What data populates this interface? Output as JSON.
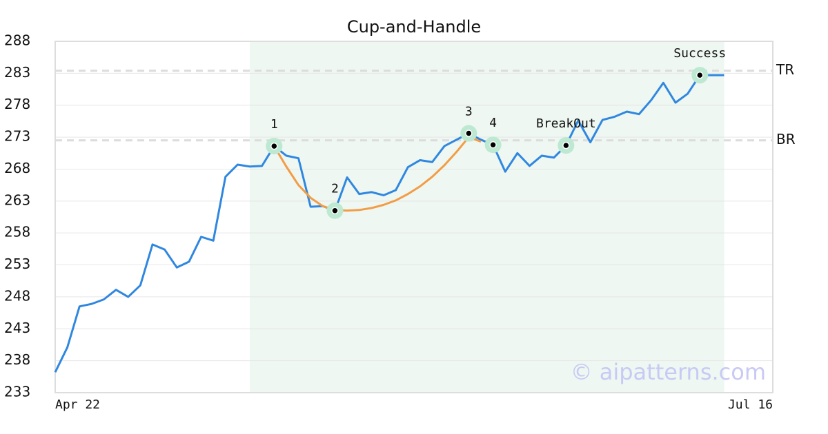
{
  "chart_data": {
    "type": "line",
    "title": "Cup-and-Handle",
    "watermark": "© aipatterns.com",
    "x": [
      0,
      1,
      2,
      3,
      4,
      5,
      6,
      7,
      8,
      9,
      10,
      11,
      12,
      13,
      14,
      15,
      16,
      17,
      18,
      19,
      20,
      21,
      22,
      23,
      24,
      25,
      26,
      27,
      28,
      29,
      30,
      31,
      32,
      33,
      34,
      35,
      36,
      37,
      38,
      39,
      40,
      41,
      42,
      43,
      44,
      45,
      46,
      47,
      48,
      49,
      50,
      51,
      52,
      53,
      54,
      55
    ],
    "xlim": [
      0,
      59
    ],
    "xticks": [
      {
        "value": 0,
        "label": "Apr 22"
      },
      {
        "value": 59,
        "label": "Jul 16"
      }
    ],
    "ylim": [
      233,
      288
    ],
    "yticks": [
      233,
      238,
      243,
      248,
      253,
      258,
      263,
      268,
      273,
      278,
      283,
      288
    ],
    "grid": true,
    "highlight_x": [
      16,
      55
    ],
    "highlight_color": "#eef7f1",
    "series": [
      {
        "color": "#2f87e0",
        "values": [
          236.2,
          240.1,
          246.5,
          246.9,
          247.6,
          249.1,
          248.0,
          249.8,
          256.2,
          255.4,
          252.6,
          253.5,
          257.4,
          256.8,
          266.8,
          268.7,
          268.4,
          268.5,
          271.6,
          270.1,
          269.7,
          262.1,
          262.2,
          261.5,
          266.7,
          264.1,
          264.4,
          263.9,
          264.7,
          268.3,
          269.4,
          269.1,
          271.6,
          272.6,
          273.6,
          272.6,
          271.8,
          267.6,
          270.5,
          268.5,
          270.1,
          269.8,
          271.7,
          275.6,
          272.2,
          275.7,
          276.2,
          277.0,
          276.6,
          278.8,
          281.5,
          278.4,
          279.8,
          282.7,
          282.7,
          282.7
        ]
      },
      {
        "color": "#f39c45",
        "values": [
          null,
          null,
          null,
          null,
          null,
          null,
          null,
          null,
          null,
          null,
          null,
          null,
          null,
          null,
          null,
          null,
          null,
          null,
          271.6,
          268.4,
          265.5,
          263.5,
          262.2,
          261.6,
          261.5,
          261.6,
          261.9,
          262.4,
          263.1,
          264.1,
          265.3,
          266.8,
          268.6,
          270.7,
          273.0,
          272.3,
          null,
          null,
          null,
          null,
          null,
          null,
          null,
          null,
          null,
          null,
          null,
          null,
          null,
          null,
          null,
          null,
          null,
          null,
          null,
          null
        ]
      }
    ],
    "annotations": [
      {
        "label": "1",
        "x": 18
      },
      {
        "label": "2",
        "x": 23
      },
      {
        "label": "3",
        "x": 34
      },
      {
        "label": "4",
        "x": 36
      },
      {
        "label": "BreakOut",
        "x": 42
      },
      {
        "label": "Success",
        "x": 53
      }
    ],
    "hlines": [
      {
        "label": "TR",
        "value": 283.4
      },
      {
        "label": "BR",
        "value": 272.5
      }
    ]
  }
}
